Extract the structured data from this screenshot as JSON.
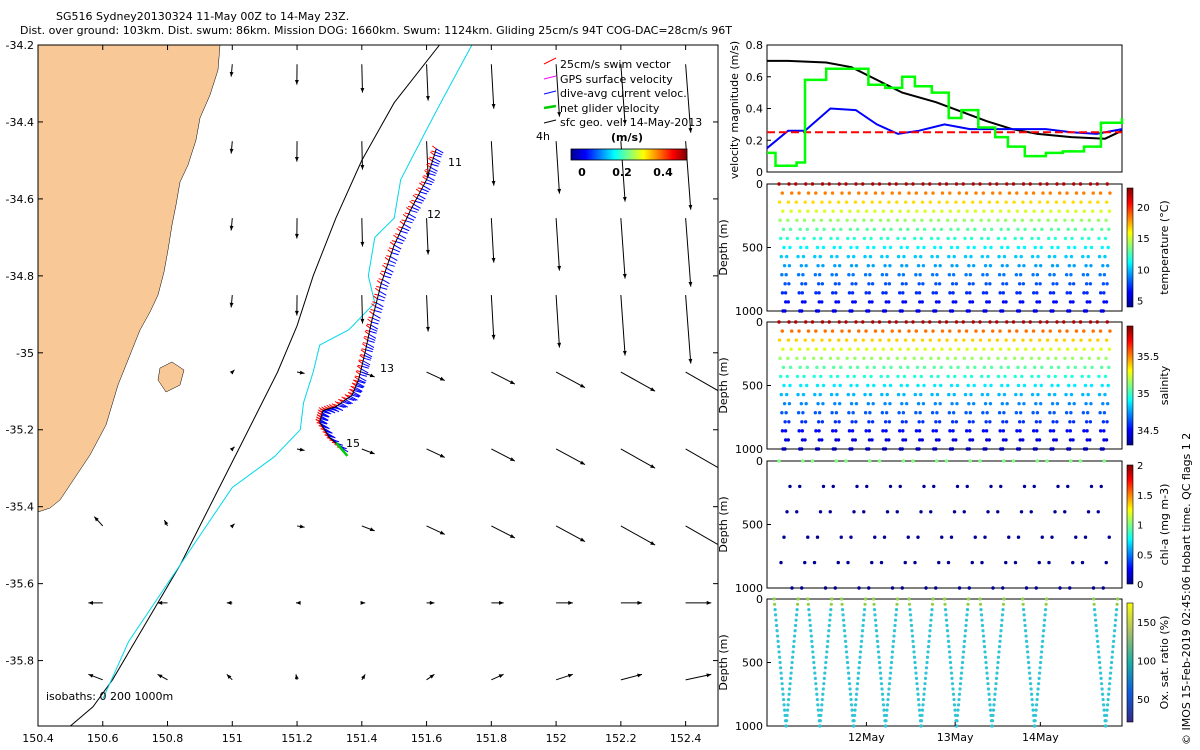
{
  "header": {
    "line1": "SG516 Sydney20130324 11-May 00Z to 14-May 23Z.",
    "line2": "Dist. over ground: 103km. Dist. swum: 86km. Mission DOG: 1660km. Swum: 1124km. Gliding 25cm/s 94T COG-DAC=28cm/s 96T"
  },
  "side_note": "© IMOS 15-Feb-2019 02:45:06 Hobart time. QC flags 1  2",
  "chart_data": [
    {
      "type": "scatter",
      "panel": "map",
      "xlim": [
        150.4,
        152.5
      ],
      "ylim": [
        -35.97,
        -34.2
      ],
      "x_ticks": [
        "150.4",
        "150.6",
        "150.8",
        "151",
        "151.2",
        "151.4",
        "151.6",
        "151.8",
        "152",
        "152.2",
        "152.4"
      ],
      "y_ticks": [
        "-34.2",
        "-34.4",
        "-34.6",
        "-34.8",
        "-35",
        "-35.2",
        "-35.4",
        "-35.6",
        "-35.8"
      ],
      "legend": {
        "placement": "top-right",
        "entries": [
          {
            "label": "25cm/s swim vector",
            "color": "#ff0000"
          },
          {
            "label": "GPS surface velocity",
            "color": "#ff00ff"
          },
          {
            "label": "dive-avg current veloc.",
            "color": "#0000ff"
          },
          {
            "label": "net glider velocity",
            "color": "#00cc00"
          },
          {
            "label": "sfc geo. vel. 14-May-2013",
            "color": "#000000"
          }
        ],
        "extra_label": "4h"
      },
      "colorbar": {
        "title": "(m/s)",
        "ticks": [
          "0",
          "0.2",
          "0.4"
        ],
        "range": [
          0,
          0.5
        ]
      },
      "isobath_label": "isobaths: 0   200  1000m",
      "track_day_labels": [
        "11",
        "12",
        "13",
        "15"
      ],
      "glider_track": {
        "lon": [
          151.63,
          151.6,
          151.55,
          151.5,
          151.46,
          151.43,
          151.41,
          151.39,
          151.37,
          151.32,
          151.28,
          151.27,
          151.3,
          151.34
        ],
        "lat": [
          -34.47,
          -34.55,
          -34.63,
          -34.72,
          -34.82,
          -34.92,
          -35.0,
          -35.07,
          -35.11,
          -35.14,
          -35.15,
          -35.18,
          -35.22,
          -35.25
        ]
      },
      "isobath_200m": {
        "lon": [
          151.74,
          151.65,
          151.6,
          151.52,
          151.5,
          151.44,
          151.42,
          151.44,
          151.36,
          151.27,
          151.25,
          151.22,
          151.21,
          151.13,
          151.0,
          150.92,
          150.84,
          150.76,
          150.68,
          150.6
        ],
        "lat": [
          -34.2,
          -34.34,
          -34.42,
          -34.55,
          -34.65,
          -34.7,
          -34.8,
          -34.87,
          -34.94,
          -34.98,
          -35.05,
          -35.13,
          -35.2,
          -35.27,
          -35.35,
          -35.45,
          -35.55,
          -35.65,
          -35.75,
          -35.9
        ]
      },
      "isobath_1000m": {
        "lon": [
          151.64,
          151.5,
          151.4,
          151.32,
          151.25,
          151.2,
          151.14,
          151.08,
          151.02,
          150.96,
          150.9,
          150.84,
          150.77,
          150.7,
          150.63,
          150.57,
          150.5
        ],
        "lat": [
          -34.2,
          -34.35,
          -34.5,
          -34.65,
          -34.8,
          -34.93,
          -35.05,
          -35.15,
          -35.25,
          -35.35,
          -35.45,
          -35.55,
          -35.65,
          -35.75,
          -35.85,
          -35.92,
          -35.97
        ]
      }
    },
    {
      "type": "line",
      "panel": "velocity",
      "ylabel": "velocity magnitude (m/s)",
      "ylim": [
        0,
        0.8
      ],
      "y_ticks": [
        "0",
        "0.2",
        "0.4",
        "0.6",
        "0.8"
      ],
      "series": [
        {
          "color": "#000000",
          "x": [
            0,
            0.25,
            0.7,
            1.0,
            1.3,
            1.6,
            2.0,
            2.3,
            2.6,
            2.9,
            3.2,
            3.6,
            4.0,
            4.2
          ],
          "values": [
            0.7,
            0.7,
            0.69,
            0.66,
            0.58,
            0.5,
            0.44,
            0.38,
            0.32,
            0.27,
            0.24,
            0.22,
            0.21,
            0.26
          ]
        },
        {
          "color": "#0000ff",
          "x": [
            0,
            0.25,
            0.45,
            0.75,
            1.05,
            1.3,
            1.55,
            1.8,
            2.1,
            2.4,
            2.7,
            3.0,
            3.3,
            3.6,
            3.9,
            4.2
          ],
          "values": [
            0.15,
            0.26,
            0.26,
            0.4,
            0.39,
            0.3,
            0.24,
            0.26,
            0.3,
            0.27,
            0.27,
            0.27,
            0.27,
            0.25,
            0.24,
            0.27
          ]
        },
        {
          "color": "#ff0000",
          "dashed": true,
          "x": [
            0,
            4.2
          ],
          "values": [
            0.25,
            0.25
          ]
        },
        {
          "color": "#00ff00",
          "step": true,
          "x": [
            0,
            0.1,
            0.35,
            0.45,
            0.7,
            0.95,
            1.2,
            1.4,
            1.6,
            1.75,
            1.95,
            2.15,
            2.3,
            2.5,
            2.7,
            2.85,
            3.05,
            3.3,
            3.5,
            3.75,
            3.95,
            4.2
          ],
          "values": [
            0.12,
            0.04,
            0.06,
            0.58,
            0.65,
            0.65,
            0.55,
            0.53,
            0.6,
            0.54,
            0.5,
            0.34,
            0.39,
            0.28,
            0.22,
            0.16,
            0.1,
            0.12,
            0.13,
            0.16,
            0.31,
            0.34
          ]
        }
      ]
    },
    {
      "type": "scatter",
      "panel": "temperature",
      "ylabel": "Depth (m)",
      "ylim": [
        0,
        1000
      ],
      "y_ticks": [
        "0",
        "500",
        "1000"
      ],
      "colorbar": {
        "label": "temperature (°C)",
        "ticks": [
          "5",
          "10",
          "15",
          "20"
        ],
        "range": [
          4,
          23
        ]
      },
      "profile_count": 20
    },
    {
      "type": "scatter",
      "panel": "salinity",
      "ylabel": "Depth (m)",
      "ylim": [
        0,
        1000
      ],
      "y_ticks": [
        "0",
        "500",
        "1000"
      ],
      "colorbar": {
        "label": "salinity",
        "ticks": [
          "34.5",
          "35",
          "35.5"
        ],
        "range": [
          34.3,
          35.9
        ]
      },
      "profile_count": 20
    },
    {
      "type": "scatter",
      "panel": "chl-a",
      "ylabel": "Depth (m)",
      "ylim": [
        0,
        1000
      ],
      "y_ticks": [
        "0",
        "500",
        "1000"
      ],
      "colorbar": {
        "label": "chl-a (mg m-3)",
        "ticks": [
          "0",
          "0.5",
          "1",
          "1.5",
          "2"
        ],
        "range": [
          0,
          2
        ]
      },
      "profile_count": 20
    },
    {
      "type": "scatter",
      "panel": "oxygen",
      "ylabel": "Depth (m)",
      "ylim": [
        0,
        1000
      ],
      "y_ticks": [
        "0",
        "500",
        "1000"
      ],
      "x_ticks": [
        "12May",
        "13May",
        "14May"
      ],
      "colorbar": {
        "label": "Ox. sat. ratio (%)",
        "ticks": [
          "50",
          "100",
          "150"
        ],
        "range": [
          20,
          175
        ]
      },
      "profile_count": 9
    }
  ]
}
